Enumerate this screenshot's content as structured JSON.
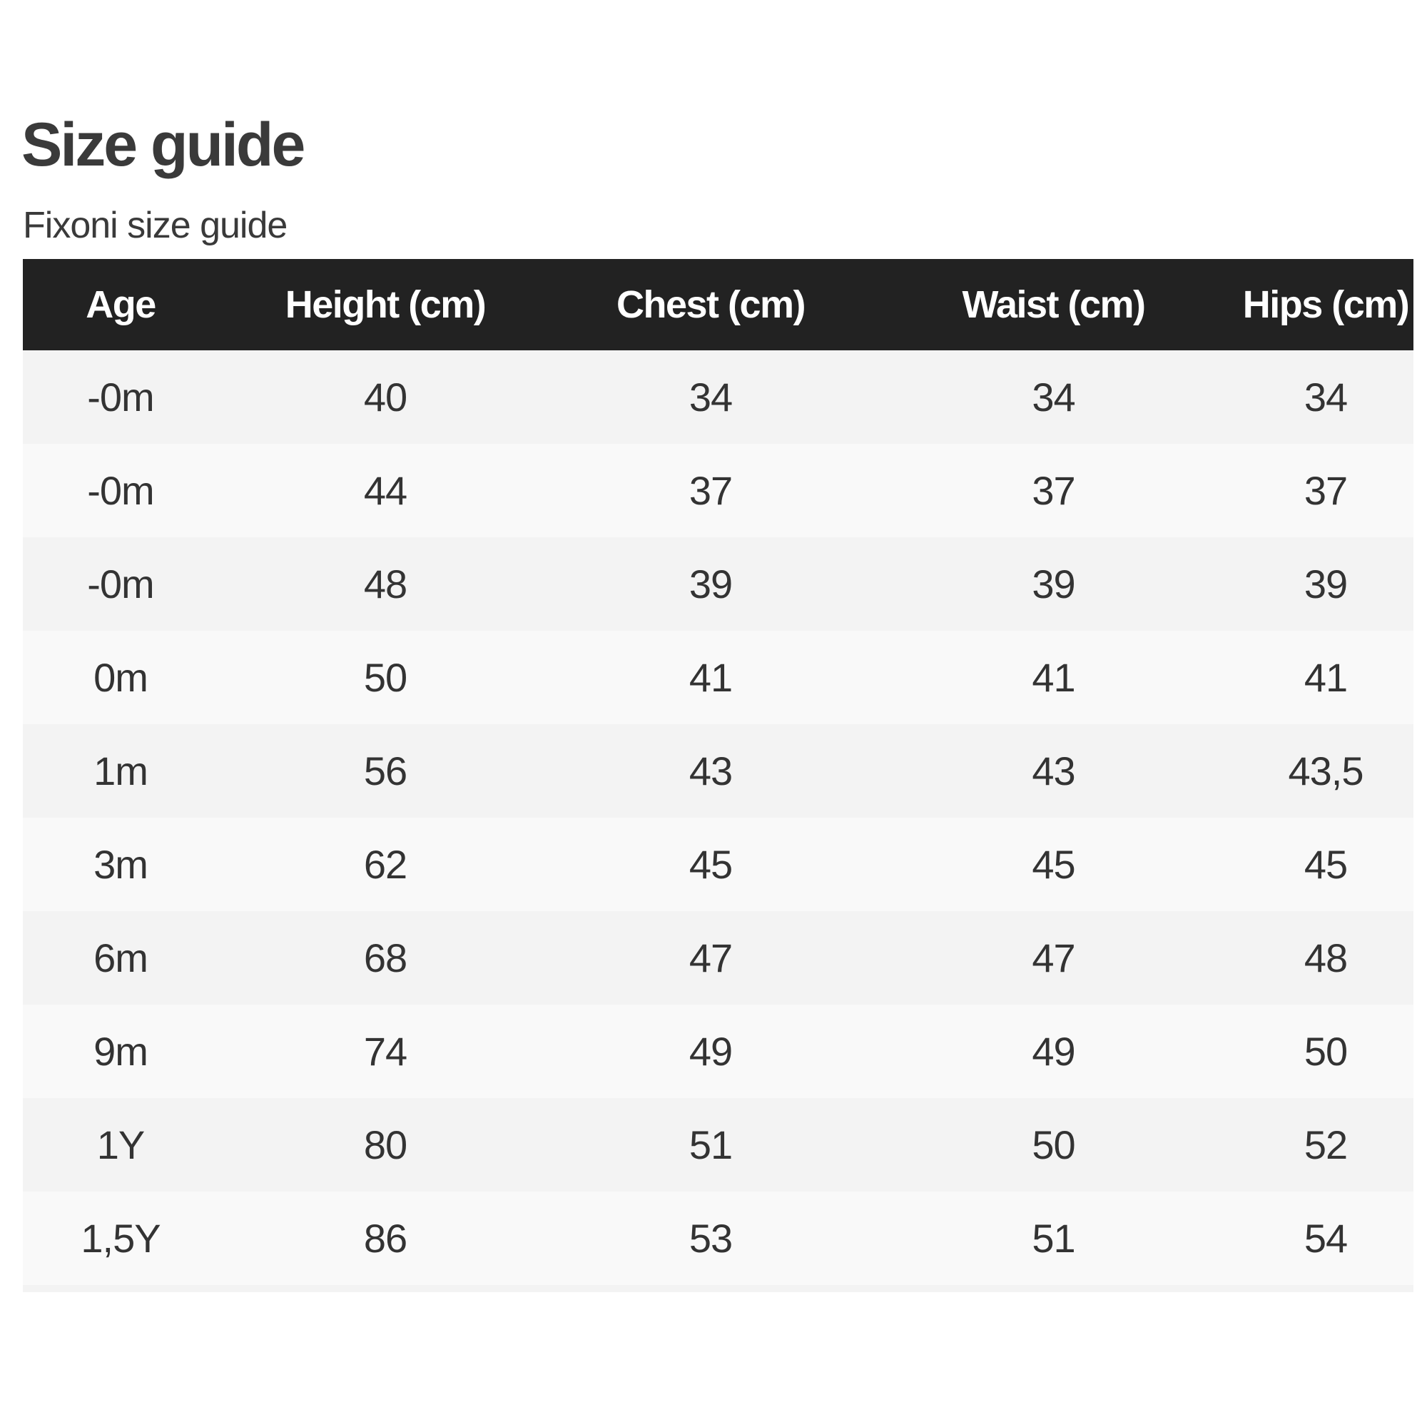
{
  "page": {
    "title": "Size guide",
    "subtitle": "Fixoni size guide"
  },
  "table": {
    "headers": [
      "Age",
      "Height (cm)",
      "Chest (cm)",
      "Waist (cm)",
      "Hips (cm)"
    ],
    "rows": [
      [
        "-0m",
        "40",
        "34",
        "34",
        "34"
      ],
      [
        "-0m",
        "44",
        "37",
        "37",
        "37"
      ],
      [
        "-0m",
        "48",
        "39",
        "39",
        "39"
      ],
      [
        "0m",
        "50",
        "41",
        "41",
        "41"
      ],
      [
        "1m",
        "56",
        "43",
        "43",
        "43,5"
      ],
      [
        "3m",
        "62",
        "45",
        "45",
        "45"
      ],
      [
        "6m",
        "68",
        "47",
        "47",
        "48"
      ],
      [
        "9m",
        "74",
        "49",
        "49",
        "50"
      ],
      [
        "1Y",
        "80",
        "51",
        "50",
        "52"
      ],
      [
        "1,5Y",
        "86",
        "53",
        "51",
        "54"
      ]
    ]
  },
  "colors": {
    "header_bg": "#222222",
    "row_odd": "#f3f3f3",
    "row_even": "#f9f9f9",
    "text": "#333333"
  }
}
